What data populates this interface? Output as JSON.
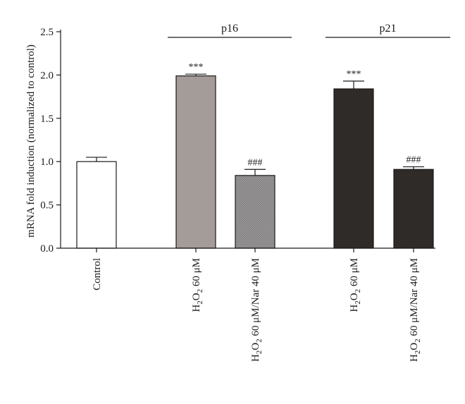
{
  "chart_data": {
    "type": "bar",
    "title": "",
    "xlabel": "",
    "ylabel": "mRNA fold induction (normalized to control)",
    "ylim": [
      0,
      2.5
    ],
    "yticks": [
      "0.0",
      "0.5",
      "1.0",
      "1.5",
      "2.0",
      "2.5"
    ],
    "grid": false,
    "legend": "none",
    "categories": [
      {
        "label": "Control"
      },
      {
        "base": "H",
        "sub1": "2",
        "mid": "O",
        "sub2": "2",
        "rest": " 60 μM"
      },
      {
        "base": "H",
        "sub1": "2",
        "mid": "O",
        "sub2": "2",
        "rest": " 60 μM/Nar 40 μM"
      },
      {
        "base": "H",
        "sub1": "2",
        "mid": "O",
        "sub2": "2",
        "rest": " 60 μM"
      },
      {
        "base": "H",
        "sub1": "2",
        "mid": "O",
        "sub2": "2",
        "rest": " 60 μM/Nar 40 μM"
      }
    ],
    "values": [
      1.0,
      1.99,
      0.84,
      1.84,
      0.91
    ],
    "errors": [
      0.05,
      0.02,
      0.07,
      0.09,
      0.03
    ],
    "significance": [
      "",
      "***",
      "###",
      "***",
      "###"
    ],
    "groups": [
      {
        "label": "p16",
        "members": [
          1,
          2
        ]
      },
      {
        "label": "p21",
        "members": [
          3,
          4
        ]
      }
    ],
    "colors": [
      "#ffffff",
      "#a39c98",
      "#9a9898",
      "#2f2b29",
      "#2f2b29"
    ],
    "edge_color": "#1a1a1a"
  }
}
